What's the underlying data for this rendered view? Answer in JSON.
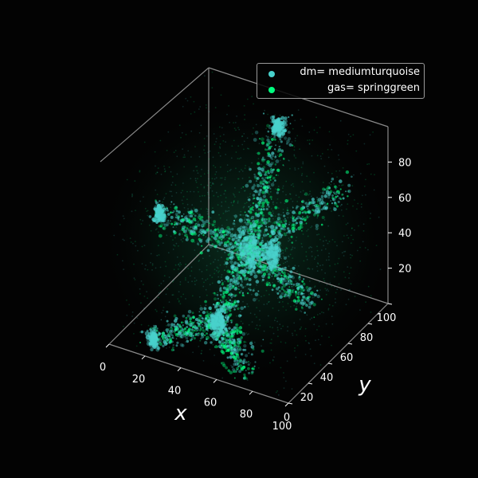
{
  "chart_data": {
    "type": "scatter",
    "projection": "3d",
    "title": "",
    "xlabel": "x",
    "ylabel": "y",
    "zlabel": "",
    "xlim": [
      0,
      100
    ],
    "ylim": [
      0,
      100
    ],
    "zlim": [
      0,
      100
    ],
    "xticks": [
      "0",
      "20",
      "40",
      "60",
      "80",
      "100"
    ],
    "yticks": [
      "0",
      "20",
      "40",
      "60",
      "80",
      "100"
    ],
    "zticks": [
      "20",
      "40",
      "60",
      "80"
    ],
    "background": "#030303",
    "grid": false,
    "legend_position": "top-right",
    "series": [
      {
        "name": "dm= mediumturquoise",
        "color": "#48d1cc"
      },
      {
        "name": "gas= springgreen",
        "color": "#00ff7f"
      }
    ],
    "structures": [
      {
        "kind": "halo",
        "x": 50,
        "y": 50,
        "z": 42,
        "size": "large"
      },
      {
        "kind": "halo",
        "x": 44,
        "y": 30,
        "z": 10,
        "size": "medium"
      },
      {
        "kind": "halo",
        "x": 60,
        "y": 55,
        "z": 40,
        "size": "medium"
      },
      {
        "kind": "halo",
        "x": 18,
        "y": 18,
        "z": 70,
        "size": "small"
      },
      {
        "kind": "halo",
        "x": 50,
        "y": 80,
        "z": 95,
        "size": "small"
      },
      {
        "kind": "halo",
        "x": 22,
        "y": 5,
        "z": 8,
        "size": "small"
      }
    ]
  }
}
